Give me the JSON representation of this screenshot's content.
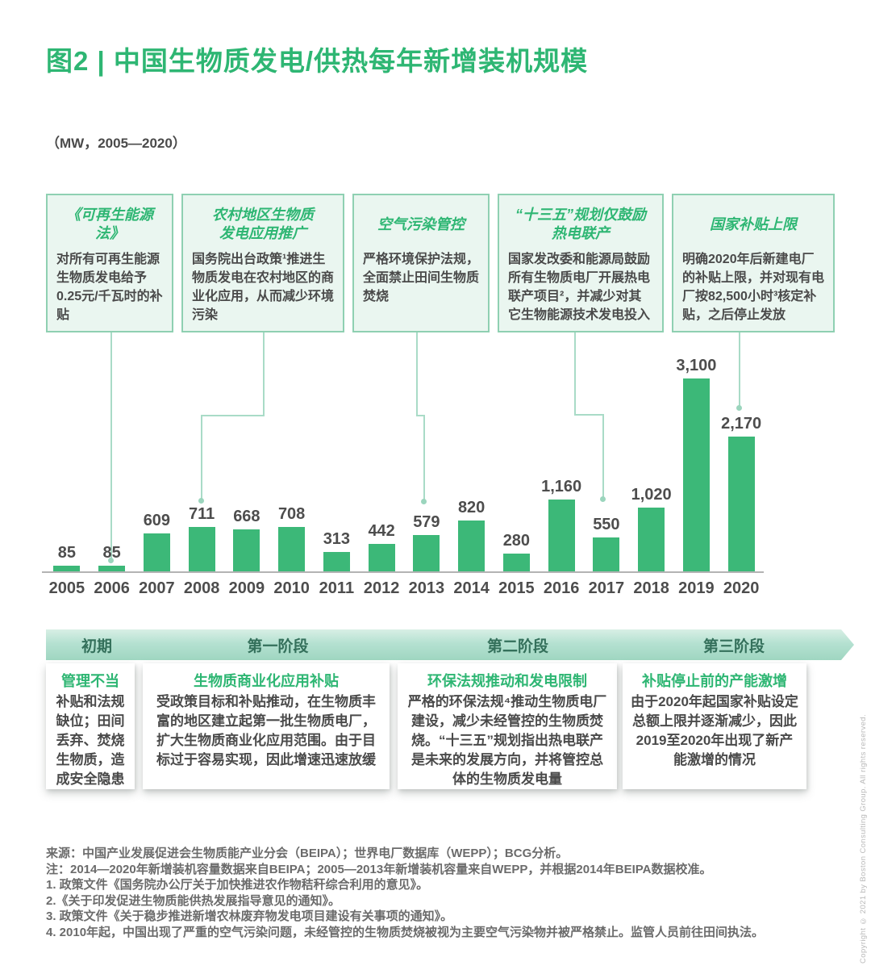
{
  "header": {
    "title": "图2 | 中国生物质发电/供热每年新增装机规模",
    "subtitle": "（MW，2005—2020）"
  },
  "policy_boxes": [
    {
      "title_lines": [
        "《可再生能源法》"
      ],
      "body": "对所有可再生能源生物质发电给予0.25元/千瓦时的补贴",
      "points_to_year": "2006"
    },
    {
      "title_lines": [
        "农村地区生物质",
        "发电应用推广"
      ],
      "body": "国务院出台政策¹推进生物质发电在农村地区的商业化应用，从而减少环境污染",
      "points_to_year": "2008"
    },
    {
      "title_lines": [
        "空气污染管控"
      ],
      "body": "严格环境保护法规，全面禁止田间生物质焚烧",
      "points_to_year": "2013"
    },
    {
      "title_lines": [
        "“十三五”规划仅鼓励",
        "热电联产"
      ],
      "body": "国家发改委和能源局鼓励所有生物质电厂开展热电联产项目²，并减少对其它生物能源技术发电投入",
      "points_to_year": "2017"
    },
    {
      "title_lines": [
        "国家补贴上限"
      ],
      "body": "明确2020年后新建电厂的补贴上限，并对现有电厂按82,500小时³核定补贴，之后停止发放",
      "points_to_year": "2020"
    }
  ],
  "chart_data": {
    "type": "bar",
    "title": "中国生物质发电/供热每年新增装机规模",
    "unit": "MW",
    "categories": [
      "2005",
      "2006",
      "2007",
      "2008",
      "2009",
      "2010",
      "2011",
      "2012",
      "2013",
      "2014",
      "2015",
      "2016",
      "2017",
      "2018",
      "2019",
      "2020"
    ],
    "values": [
      85,
      85,
      609,
      711,
      668,
      708,
      313,
      442,
      579,
      820,
      280,
      1160,
      550,
      1020,
      3100,
      2170
    ],
    "value_labels": [
      "85",
      "85",
      "609",
      "711",
      "668",
      "708",
      "313",
      "442",
      "579",
      "820",
      "280",
      "1,160",
      "550",
      "1,020",
      "3,100",
      "2,170"
    ],
    "ylim": [
      0,
      3300
    ],
    "grid": false,
    "legend": false,
    "bar_color": "#3cb878"
  },
  "phases": [
    {
      "band_label": "初期",
      "title": "管理不当",
      "body": "补贴和法规缺位；田间丢弃、焚烧生物质，造成安全隐患"
    },
    {
      "band_label": "第一阶段",
      "title": "生物质商业化应用补贴",
      "body": "受政策目标和补贴推动，在生物质丰富的地区建立起第一批生物质电厂，扩大生物质商业化应用范围。由于目标过于容易实现，因此增速迅速放缓"
    },
    {
      "band_label": "第二阶段",
      "title": "环保法规推动和发电限制",
      "body": "严格的环保法规⁴推动生物质电厂建设，减少未经管控的生物质焚烧。“十三五”规划指出热电联产是未来的发展方向，并将管控总体的生物质发电量"
    },
    {
      "band_label": "第三阶段",
      "title": "补贴停止前的产能激增",
      "body": "由于2020年起国家补贴设定总额上限并逐渐减少，因此2019至2020年出现了新产能激增的情况"
    }
  ],
  "footnotes": [
    "来源：中国产业发展促进会生物质能产业分会（BEIPA）；世界电厂数据库（WEPP）；BCG分析。",
    "注：2014—2020年新增装机容量数据来自BEIPA；2005—2013年新增装机容量来自WEPP，并根据2014年BEIPA数据校准。",
    "1. 政策文件《国务院办公厅关于加快推进农作物秸秆综合利用的意见》。",
    "2.《关于印发促进生物质能供热发展指导意见的通知》。",
    "3. 政策文件《关于稳步推进新增农林废弃物发电项目建设有关事项的通知》。",
    "4. 2010年起，中国出现了严重的空气污染问题，未经管控的生物质焚烧被视为主要空气污染物并被严格禁止。监管人员前往田间执法。"
  ],
  "copyright": "Copyright © 2021 by Boston Consulting Group. All rights reserved.",
  "colors": {
    "accent_green": "#2eb673",
    "bar_green": "#3cb878",
    "box_background": "#eaf6f0",
    "box_border": "#8fd0b2",
    "connector_green": "#a9dbc7",
    "band_gradient_top": "#d8efe5",
    "band_gradient_bottom": "#9fd6c1",
    "dark_text": "#4a4a4a",
    "footnote_text": "#6b6b6b"
  }
}
